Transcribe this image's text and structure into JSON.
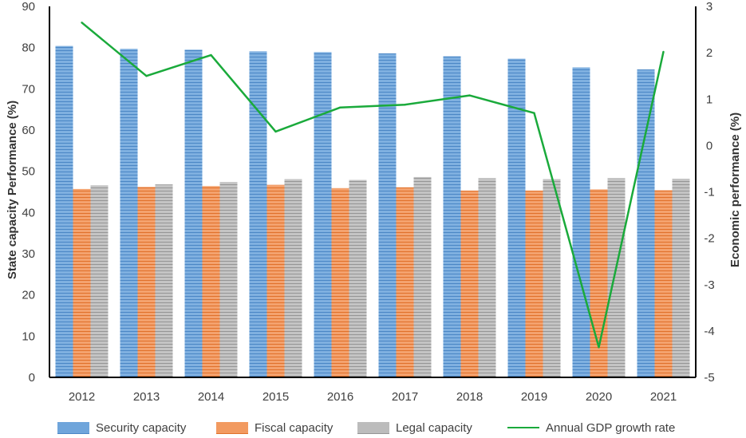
{
  "chart_data": {
    "type": "bar",
    "categories": [
      "2012",
      "2013",
      "2014",
      "2015",
      "2016",
      "2017",
      "2018",
      "2019",
      "2020",
      "2021"
    ],
    "series": [
      {
        "name": "Security capacity",
        "type": "bar",
        "axis": "left",
        "color": "#5B9BD5",
        "values": [
          80.4,
          79.7,
          79.5,
          79.1,
          78.9,
          78.6,
          77.9,
          77.3,
          75.2,
          74.7
        ]
      },
      {
        "name": "Fiscal capacity",
        "type": "bar",
        "axis": "left",
        "color": "#ED7D31",
        "values": [
          45.7,
          46.2,
          46.4,
          46.7,
          45.9,
          46.1,
          45.3,
          45.3,
          45.6,
          45.4
        ]
      },
      {
        "name": "Legal capacity",
        "type": "bar",
        "axis": "left",
        "color": "#A5A5A5",
        "values": [
          46.6,
          46.8,
          47.4,
          48.1,
          47.9,
          48.6,
          48.3,
          48.1,
          48.3,
          48.2
        ]
      },
      {
        "name": "Annual GDP growth rate",
        "type": "line",
        "axis": "right",
        "color": "#1AAA3B",
        "values": [
          2.65,
          1.5,
          1.95,
          0.3,
          0.82,
          0.88,
          1.08,
          0.7,
          -4.35,
          2.02
        ]
      }
    ],
    "ylabel": "State capacity Performance (%)",
    "y2label": "Economic performance (%)",
    "xlabel": "",
    "ylim": [
      0,
      90
    ],
    "y2lim": [
      -5,
      3
    ],
    "yticks": [
      "0",
      "10",
      "20",
      "30",
      "40",
      "50",
      "60",
      "70",
      "80",
      "90"
    ],
    "y2ticks": [
      "-5",
      "-4",
      "-3",
      "-2",
      "-1",
      "0",
      "1",
      "2",
      "3"
    ],
    "grid": false,
    "legend_position": "bottom"
  }
}
